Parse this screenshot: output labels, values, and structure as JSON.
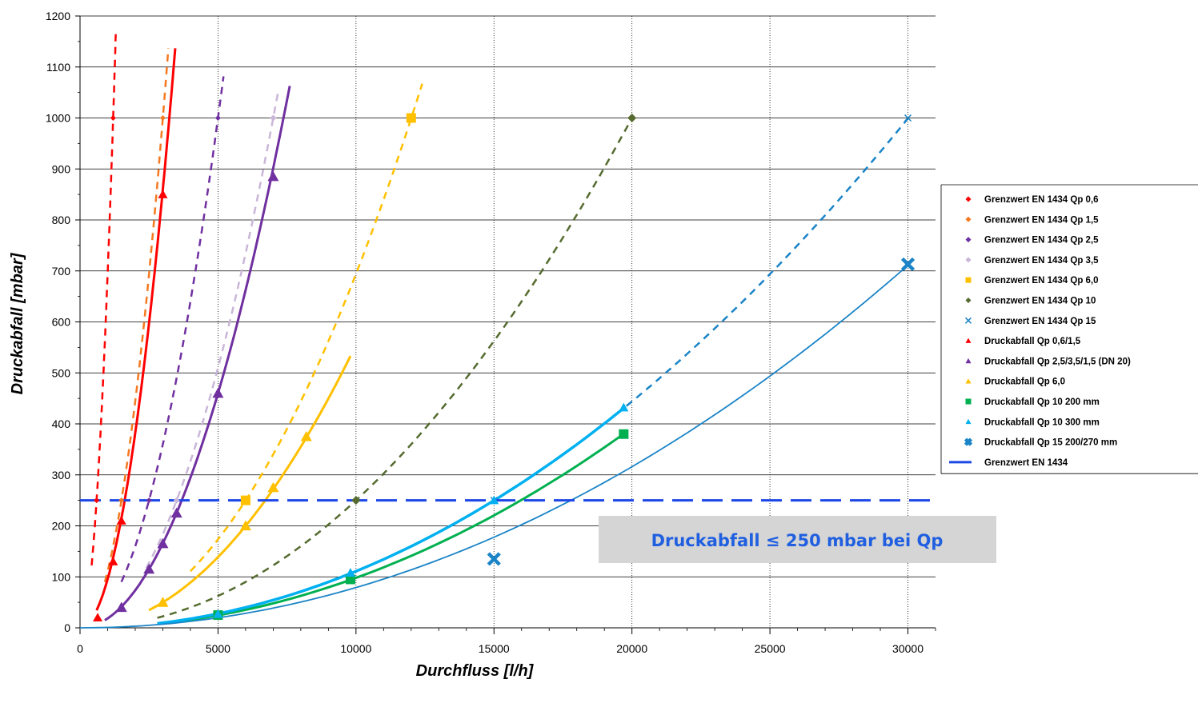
{
  "chart_data": {
    "type": "scatter",
    "xlabel": "Durchfluss  [l/h]",
    "ylabel": "Druckabfall  [mbar]",
    "xlim": [
      0,
      31000
    ],
    "ylim": [
      0,
      1200
    ],
    "x_ticks": [
      0,
      5000,
      10000,
      15000,
      20000,
      25000,
      30000
    ],
    "y_ticks": [
      0,
      100,
      200,
      300,
      400,
      500,
      600,
      700,
      800,
      900,
      1000,
      1100,
      1200
    ],
    "grid": true,
    "legend_position": "right",
    "annotation": "Druckabfall ≤ 250 mbar bei Qp",
    "series": [
      {
        "name": "Grenzwert EN 1434 Qp 0,6",
        "color": "#ff0000",
        "marker": "diamond",
        "marker_size": 7,
        "line": "dashed",
        "line_width": 2.5,
        "points": [
          [
            600,
            250
          ],
          [
            1200,
            1000
          ]
        ],
        "curve": {
          "k": 0.000694,
          "x_from": 420,
          "x_to": 1300
        }
      },
      {
        "name": "Grenzwert EN 1434 Qp 1,5",
        "color": "#f47920",
        "marker": "diamond",
        "marker_size": 7,
        "line": "dashed",
        "line_width": 2.5,
        "points": [
          [
            1500,
            250
          ],
          [
            3000,
            1000
          ]
        ],
        "curve": {
          "k": 0.000111,
          "x_from": 900,
          "x_to": 3200
        }
      },
      {
        "name": "Grenzwert EN 1434 Qp 2,5",
        "color": "#7030a0",
        "marker": "diamond",
        "marker_size": 7,
        "line": "dashed",
        "line_width": 2.5,
        "points": [
          [
            2500,
            250
          ],
          [
            5000,
            1000
          ]
        ],
        "curve": {
          "k": 4e-05,
          "x_from": 1500,
          "x_to": 5200
        }
      },
      {
        "name": "Grenzwert EN 1434 Qp 3,5",
        "color": "#c9b6d8",
        "marker": "diamond",
        "marker_size": 8,
        "line": "dashed",
        "line_width": 2.5,
        "points": [
          [
            3500,
            250
          ],
          [
            7000,
            1000
          ]
        ],
        "curve": {
          "k": 2.04e-05,
          "x_from": 2400,
          "x_to": 7200
        }
      },
      {
        "name": "Grenzwert EN 1434 Qp 6,0",
        "color": "#ffc000",
        "marker": "square",
        "marker_size": 12,
        "line": "dashed",
        "line_width": 2.5,
        "points": [
          [
            6000,
            250
          ],
          [
            12000,
            1000
          ]
        ],
        "curve": {
          "k": 6.94e-06,
          "x_from": 4000,
          "x_to": 12400
        }
      },
      {
        "name": "Grenzwert EN 1434 Qp 10",
        "color": "#556b2f",
        "marker": "diamond",
        "marker_size": 11,
        "line": "dashed",
        "line_width": 2.5,
        "points": [
          [
            10000,
            250
          ],
          [
            20000,
            1000
          ]
        ],
        "curve": {
          "k": 2.5e-06,
          "x_from": 2800,
          "x_to": 20000
        }
      },
      {
        "name": "Grenzwert EN 1434 Qp 15",
        "color": "#1a84c7",
        "marker": "x",
        "marker_size": 8,
        "line": "dashed",
        "line_width": 2.5,
        "points": [
          [
            15000,
            250
          ],
          [
            30000,
            1000
          ]
        ],
        "curve": {
          "k": 1.11e-06,
          "x_from": 19800,
          "x_to": 30000
        }
      },
      {
        "name": "Druckabfall Qp 0,6/1,5",
        "color": "#ff0000",
        "marker": "triangle",
        "marker_size": 12,
        "line": "solid",
        "line_width": 3,
        "points": [
          [
            640,
            20
          ],
          [
            1200,
            130
          ],
          [
            1500,
            210
          ],
          [
            3000,
            850
          ]
        ],
        "curve": {
          "k": 9.55e-05,
          "x_from": 600,
          "x_to": 3450
        }
      },
      {
        "name": "Druckabfall Qp 2,5/3,5/1,5 (DN 20)",
        "color": "#7030a0",
        "marker": "triangle",
        "marker_size": 14,
        "line": "solid",
        "line_width": 3,
        "points": [
          [
            1500,
            40
          ],
          [
            2500,
            115
          ],
          [
            3000,
            165
          ],
          [
            3500,
            225
          ],
          [
            5000,
            460
          ],
          [
            7000,
            885
          ]
        ],
        "curve": {
          "k": 1.84e-05,
          "x_from": 900,
          "x_to": 7600
        }
      },
      {
        "name": "Druckabfall Qp 6,0",
        "color": "#ffc000",
        "marker": "triangle",
        "marker_size": 14,
        "line": "solid",
        "line_width": 3,
        "points": [
          [
            3000,
            50
          ],
          [
            6000,
            200
          ],
          [
            7000,
            275
          ],
          [
            8200,
            375
          ]
        ],
        "curve": {
          "k": 5.55e-06,
          "x_from": 2500,
          "x_to": 9800
        }
      },
      {
        "name": "Druckabfall Qp 10 200 mm",
        "color": "#00b050",
        "marker": "square",
        "marker_size": 12,
        "line": "solid",
        "line_width": 3,
        "points": [
          [
            5000,
            25
          ],
          [
            9800,
            95
          ],
          [
            19700,
            380
          ]
        ],
        "curve": {
          "k": 9.8e-07,
          "x_from": 2800,
          "x_to": 19700
        }
      },
      {
        "name": "Druckabfall Qp 10 300 mm",
        "color": "#00b0f0",
        "marker": "triangle",
        "marker_size": 12,
        "line": "solid",
        "line_width": 3.5,
        "points": [
          [
            5000,
            27
          ],
          [
            9800,
            108
          ],
          [
            15000,
            250
          ],
          [
            19700,
            432
          ]
        ],
        "curve": {
          "k": 1.11e-06,
          "x_from": 2800,
          "x_to": 19700
        }
      },
      {
        "name": "Druckabfall Qp 15 200/270 mm",
        "color": "#1a84c7",
        "marker": "cross",
        "marker_size": 14,
        "line": "solid",
        "line_width": 1.8,
        "points": [
          [
            15000,
            135
          ],
          [
            30000,
            713
          ]
        ],
        "curve": {
          "k": 7.9e-07,
          "x_from": 0,
          "x_to": 30000
        }
      },
      {
        "name": "Grenzwert EN 1434",
        "color": "#1c46e6",
        "marker": "none",
        "marker_size": 0,
        "line": "longdash",
        "line_width": 3,
        "points": [],
        "hline": 250
      }
    ]
  }
}
